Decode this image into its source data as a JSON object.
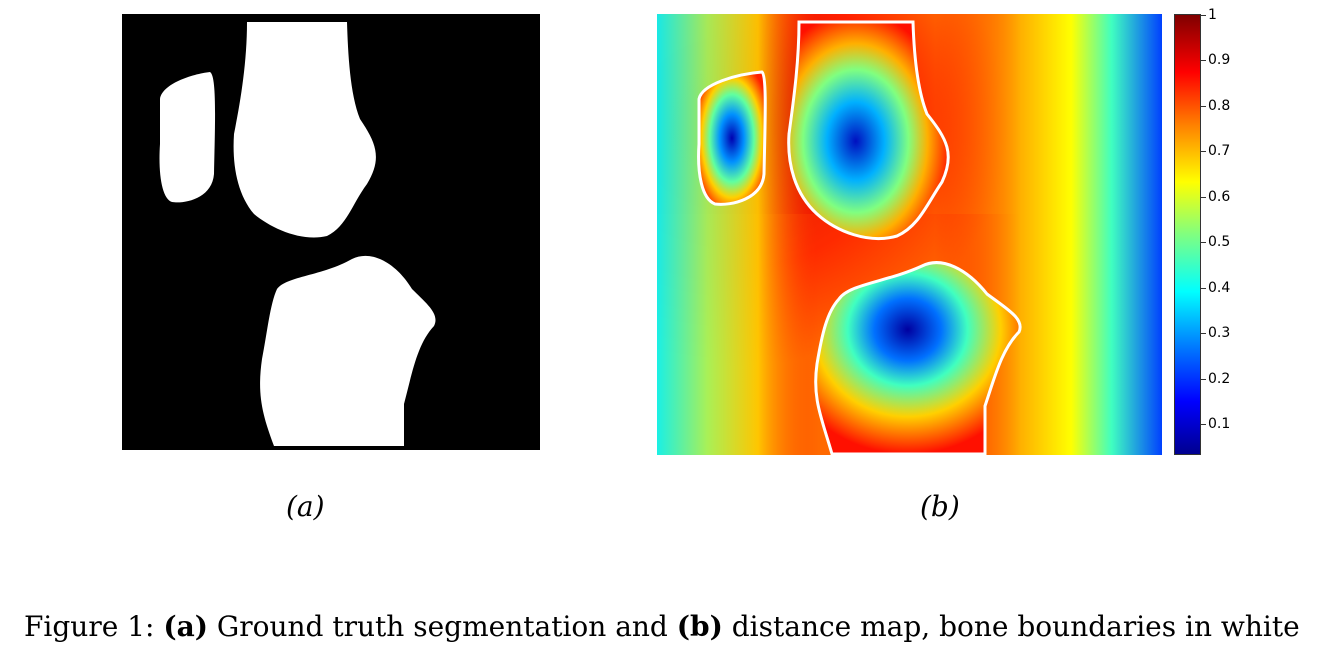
{
  "figure": {
    "panel_a_label": "(a)",
    "panel_b_label": "(b)",
    "colorbar_ticks": [
      "1",
      "0.9",
      "0.8",
      "0.7",
      "0.6",
      "0.5",
      "0.4",
      "0.3",
      "0.2",
      "0.1"
    ],
    "caption": {
      "prefix": "Figure 1: ",
      "bold_a": "(a)",
      "text_a": " Ground truth segmentation and ",
      "bold_b": "(b)",
      "text_b": " distance map, bone boundaries in white"
    }
  },
  "colors": {
    "background": "#ffffff",
    "mask_background": "#000000",
    "mask_foreground": "#ffffff",
    "boundary": "#ffffff",
    "colormap": "jet"
  }
}
